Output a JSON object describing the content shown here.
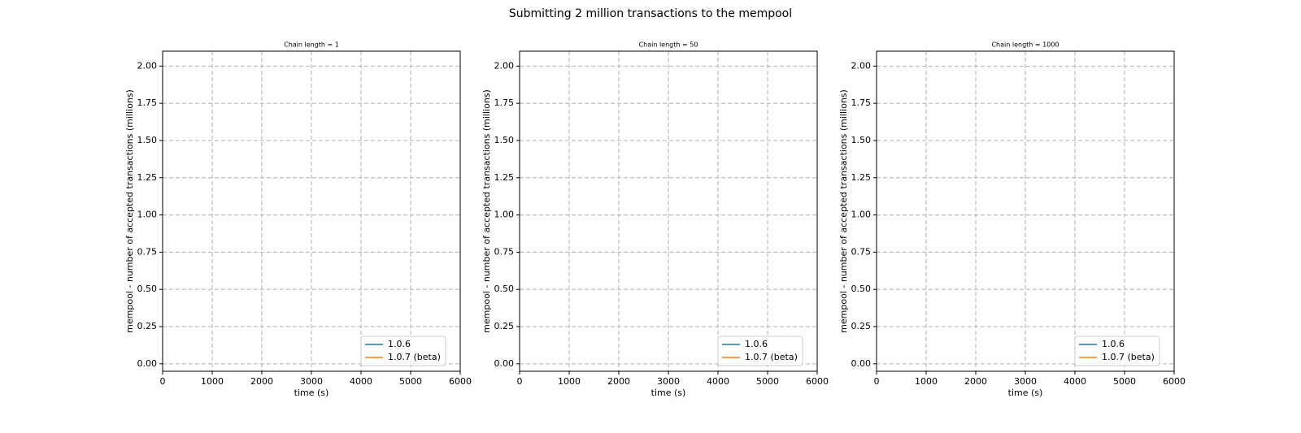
{
  "title": "Submitting 2 million transactions to the mempool",
  "chart_data": [
    {
      "type": "line",
      "title": "Chain length = 1",
      "xlabel": "time (s)",
      "ylabel": "mempool - number of accepted transactions (millions)",
      "x": [],
      "series": [
        {
          "name": "1.0.6",
          "color": "#1f77b4",
          "values": []
        },
        {
          "name": "1.0.7 (beta)",
          "color": "#ff7f0e",
          "values": []
        }
      ],
      "xlim": [
        0,
        6000
      ],
      "ylim": [
        -0.05,
        2.1
      ],
      "xticks": [
        0,
        1000,
        2000,
        3000,
        4000,
        5000,
        6000
      ],
      "yticks": [
        {
          "value": 0,
          "label": "0.00"
        },
        {
          "value": 0.25,
          "label": "0.25"
        },
        {
          "value": 0.5,
          "label": "0.50"
        },
        {
          "value": 0.75,
          "label": "0.75"
        },
        {
          "value": 1,
          "label": "1.00"
        },
        {
          "value": 1.25,
          "label": "1.25"
        },
        {
          "value": 1.5,
          "label": "1.50"
        },
        {
          "value": 1.75,
          "label": "1.75"
        },
        {
          "value": 2,
          "label": "2.00"
        }
      ],
      "grid": true,
      "legend": "lower right"
    },
    {
      "type": "line",
      "title": "Chain length = 50",
      "xlabel": "time (s)",
      "ylabel": "mempool - number of accepted transactions (millions)",
      "x": [],
      "series": [
        {
          "name": "1.0.6",
          "color": "#1f77b4",
          "values": []
        },
        {
          "name": "1.0.7 (beta)",
          "color": "#ff7f0e",
          "values": []
        }
      ],
      "xlim": [
        0,
        6000
      ],
      "ylim": [
        -0.05,
        2.1
      ],
      "xticks": [
        0,
        1000,
        2000,
        3000,
        4000,
        5000,
        6000
      ],
      "yticks": [
        {
          "value": 0,
          "label": "0.00"
        },
        {
          "value": 0.25,
          "label": "0.25"
        },
        {
          "value": 0.5,
          "label": "0.50"
        },
        {
          "value": 0.75,
          "label": "0.75"
        },
        {
          "value": 1,
          "label": "1.00"
        },
        {
          "value": 1.25,
          "label": "1.25"
        },
        {
          "value": 1.5,
          "label": "1.50"
        },
        {
          "value": 1.75,
          "label": "1.75"
        },
        {
          "value": 2,
          "label": "2.00"
        }
      ],
      "grid": true,
      "legend": "lower right"
    },
    {
      "type": "line",
      "title": "Chain length = 1000",
      "xlabel": "time (s)",
      "ylabel": "mempool - number of accepted transactions (millions)",
      "x": [],
      "series": [
        {
          "name": "1.0.6",
          "color": "#1f77b4",
          "values": []
        },
        {
          "name": "1.0.7 (beta)",
          "color": "#ff7f0e",
          "values": []
        }
      ],
      "xlim": [
        0,
        6000
      ],
      "ylim": [
        -0.05,
        2.1
      ],
      "xticks": [
        0,
        1000,
        2000,
        3000,
        4000,
        5000,
        6000
      ],
      "yticks": [
        {
          "value": 0,
          "label": "0.00"
        },
        {
          "value": 0.25,
          "label": "0.25"
        },
        {
          "value": 0.5,
          "label": "0.50"
        },
        {
          "value": 0.75,
          "label": "0.75"
        },
        {
          "value": 1,
          "label": "1.00"
        },
        {
          "value": 1.25,
          "label": "1.25"
        },
        {
          "value": 1.5,
          "label": "1.50"
        },
        {
          "value": 1.75,
          "label": "1.75"
        },
        {
          "value": 2,
          "label": "2.00"
        }
      ],
      "grid": true,
      "legend": "lower right"
    }
  ]
}
